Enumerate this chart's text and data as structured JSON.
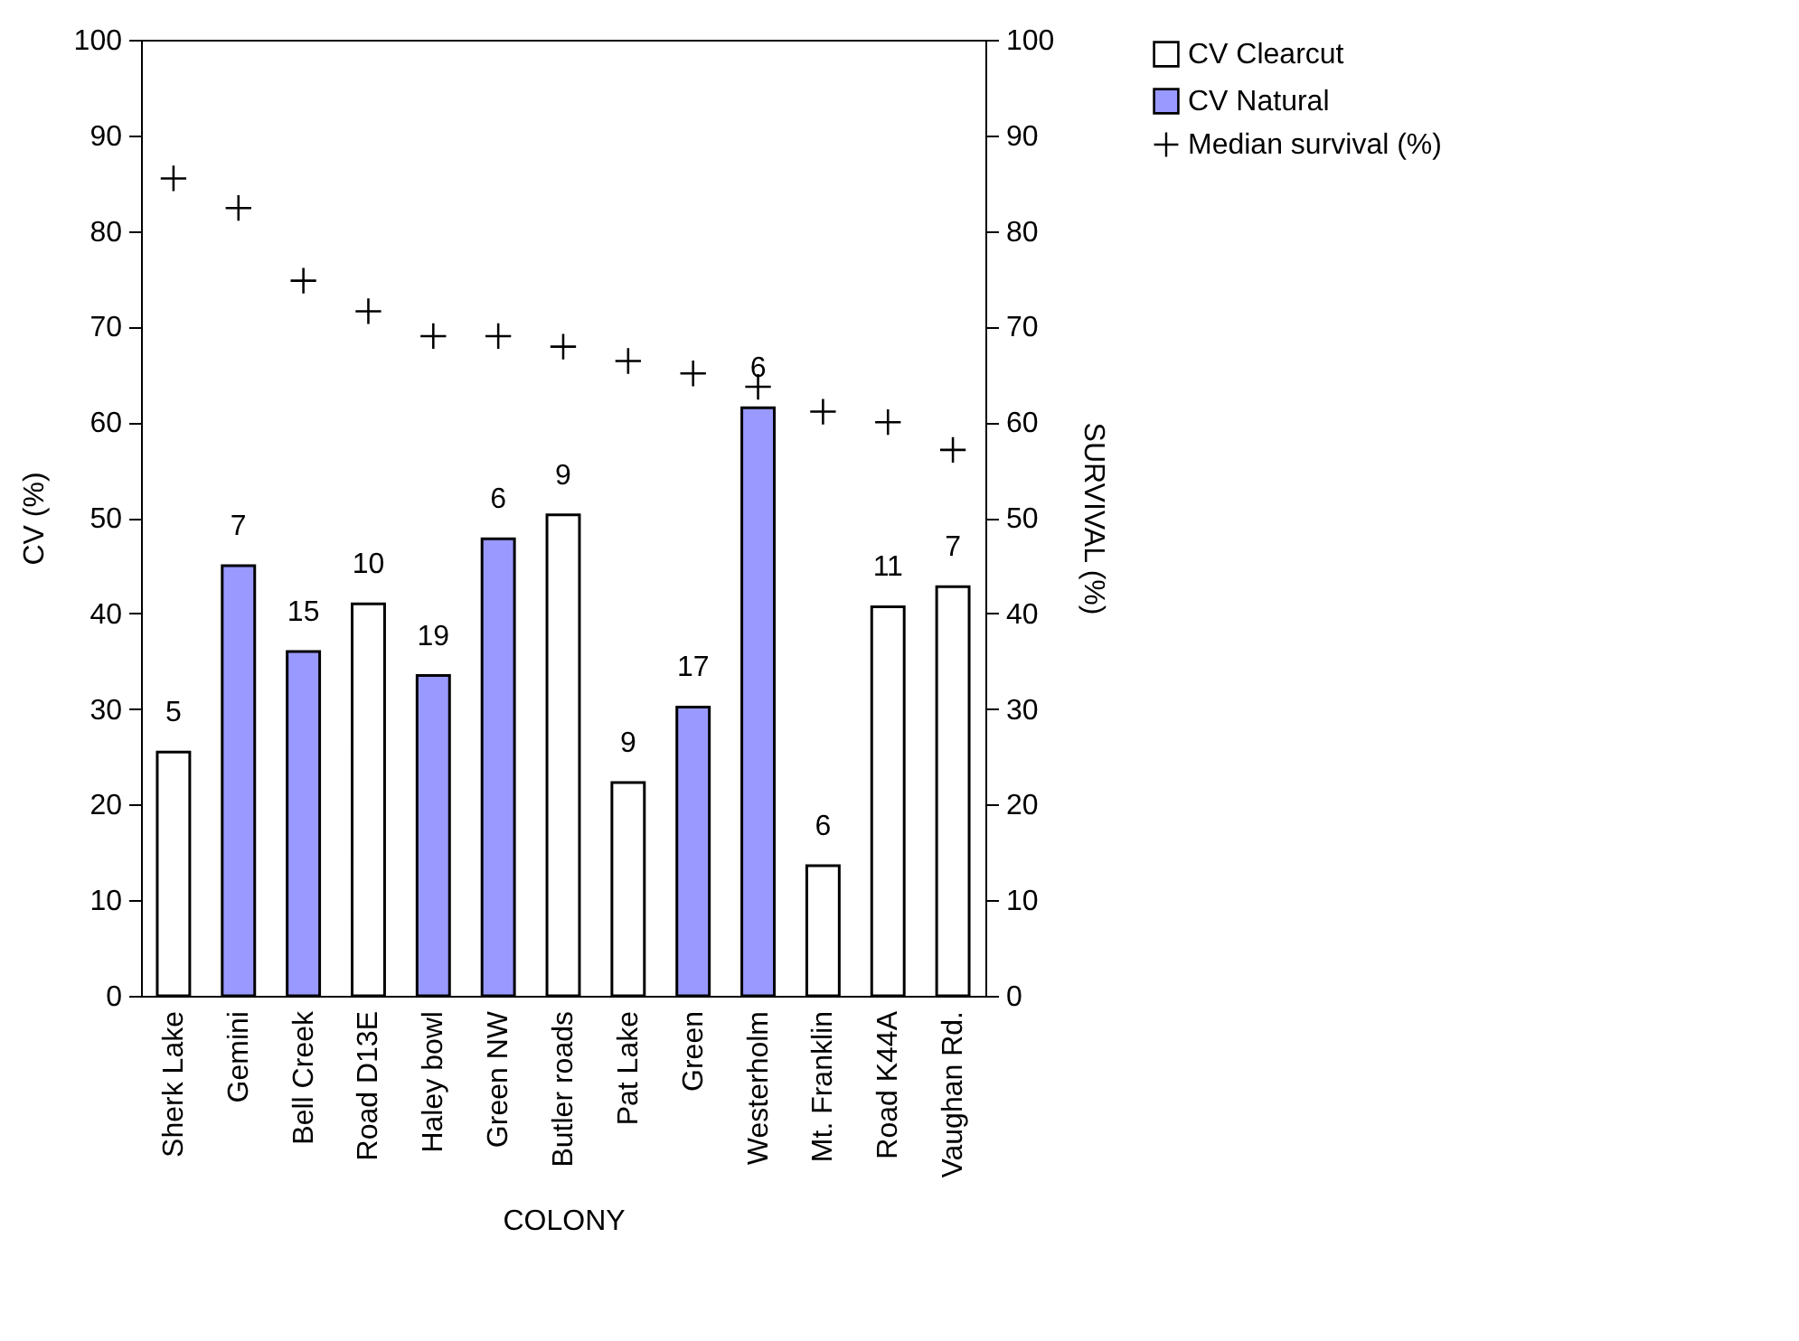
{
  "chart_data": {
    "type": "bar",
    "xlabel": "COLONY",
    "ylabel": "CV (%)",
    "y2label": "SURVIVAL (%)",
    "categories": [
      "Sherk Lake",
      "Gemini",
      "Bell Creek",
      "Road D13E",
      "Haley bowl",
      "Green NW",
      "Butler roads",
      "Pat Lake",
      "Green",
      "Westerholm",
      "Mt. Franklin",
      "Road K44A",
      "Vaughan Rd."
    ],
    "series": [
      {
        "name": "CV Clearcut",
        "type": "bar",
        "color": "#ffffff",
        "values": [
          25.5,
          null,
          null,
          41,
          null,
          null,
          50.3,
          22.3,
          null,
          null,
          13.6,
          40.7,
          42.8
        ]
      },
      {
        "name": "CV Natural",
        "type": "bar",
        "color": "#9999ff",
        "values": [
          null,
          45,
          36,
          null,
          33.5,
          47.8,
          null,
          null,
          30.2,
          61.5,
          null,
          null,
          null
        ]
      },
      {
        "name": "Median survival (%)",
        "type": "scatter",
        "axis": "y2",
        "marker": "cross",
        "color": "#000000",
        "values": [
          85.5,
          82.4,
          74.8,
          71.6,
          69,
          69,
          67.9,
          66.4,
          65.1,
          63.7,
          61.1,
          60,
          57.1
        ]
      }
    ],
    "ylim": [
      0,
      100
    ],
    "yticks": [
      0,
      10,
      20,
      30,
      40,
      50,
      60,
      70,
      80,
      90,
      100
    ],
    "y2lim": [
      0,
      100
    ],
    "y2ticks": [
      0,
      10,
      20,
      30,
      40,
      50,
      60,
      70,
      80,
      90,
      100
    ],
    "annotations": [
      {
        "text": "5",
        "x": "Sherk Lake",
        "y": 25.5
      },
      {
        "text": "7",
        "x": "Gemini",
        "y": 45
      },
      {
        "text": "15",
        "x": "Bell Creek",
        "y": 36
      },
      {
        "text": "10",
        "x": "Road D13E",
        "y": 41
      },
      {
        "text": "19",
        "x": "Haley bowl",
        "y": 33.5
      },
      {
        "text": "6",
        "x": "Green NW",
        "y": 47.8
      },
      {
        "text": "9",
        "x": "Butler roads",
        "y": 50.3
      },
      {
        "text": "9",
        "x": "Pat Lake",
        "y": 22.3
      },
      {
        "text": "17",
        "x": "Green",
        "y": 30.2
      },
      {
        "text": "6",
        "x": "Westerholm",
        "y": 61.5
      },
      {
        "text": "6",
        "x": "Mt. Franklin",
        "y": 13.6
      },
      {
        "text": "11",
        "x": "Road K44A",
        "y": 40.7
      },
      {
        "text": "7",
        "x": "Vaughan Rd.",
        "y": 42.8
      }
    ],
    "grid": false,
    "legend": "top right"
  }
}
